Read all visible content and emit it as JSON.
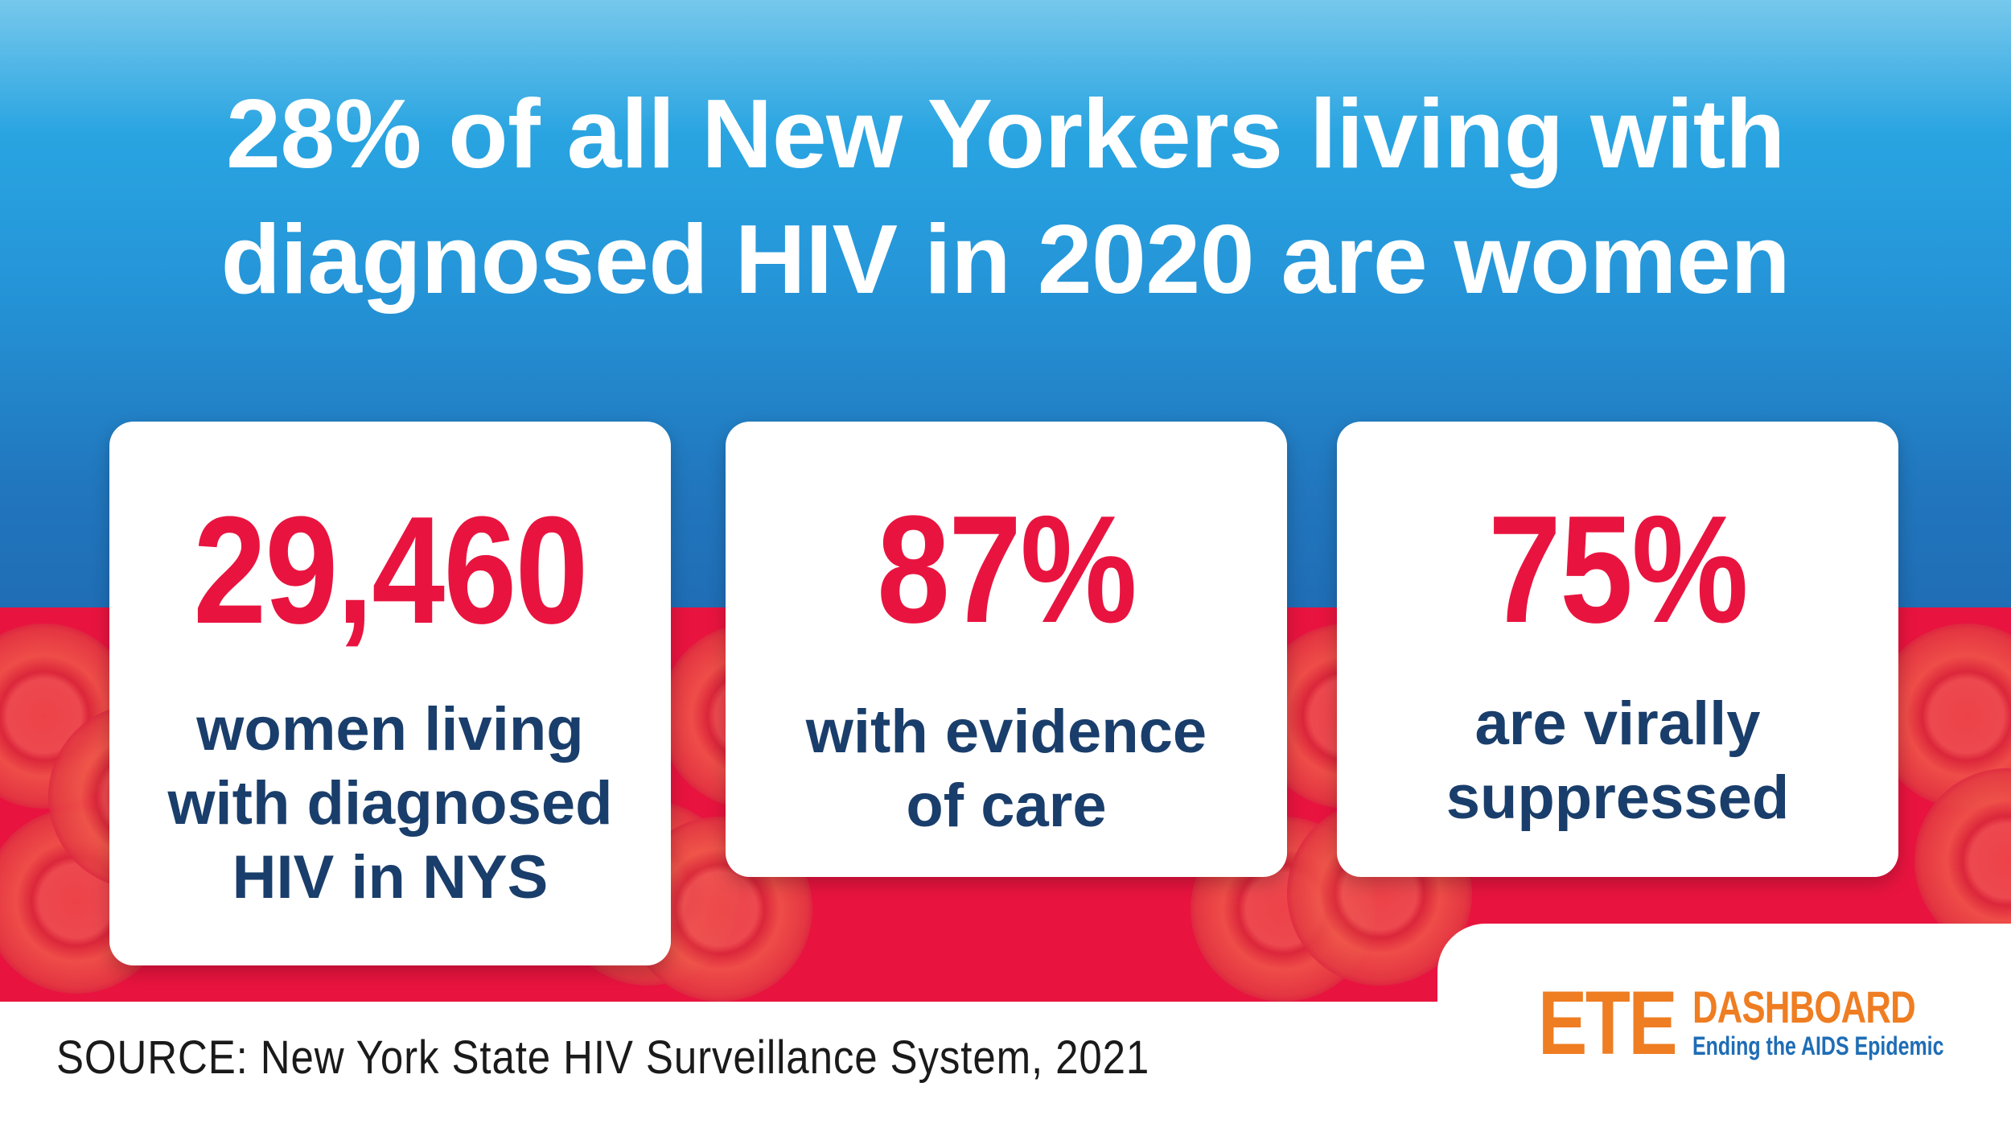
{
  "headline": {
    "line1": "28% of all New Yorkers living with",
    "line2": "diagnosed HIV in 2020 are women"
  },
  "cards": [
    {
      "value": "29,460",
      "lines": [
        "women living",
        "with diagnosed",
        "HIV in NYS"
      ]
    },
    {
      "value": "87%",
      "lines": [
        "with evidence",
        "of care"
      ]
    },
    {
      "value": "75%",
      "lines": [
        "are virally",
        "suppressed"
      ]
    }
  ],
  "source": "SOURCE: New York State HIV Surveillance System, 2021",
  "logo": {
    "mark": "ETE",
    "name": "DASHBOARD",
    "tagline": "Ending the AIDS Epidemic"
  },
  "colors": {
    "sky_blue": "#29a4e1",
    "deep_blue": "#1f6db5",
    "red": "#e8143f",
    "navy_text": "#1a3e6b",
    "orange": "#ef7d22"
  }
}
